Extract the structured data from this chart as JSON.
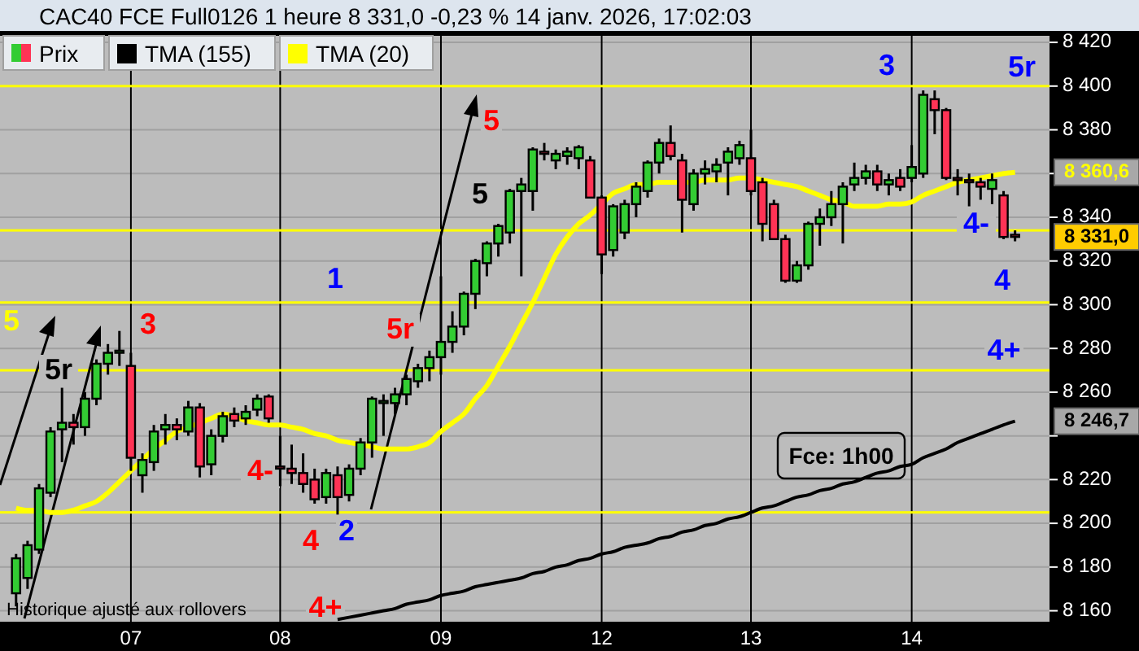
{
  "chart_data": {
    "type": "candlestick",
    "title": "CAC40 FCE Full0126 1 heure 8 331,0 -0,23 % 14 janv. 2026, 17:02:03",
    "categories": [
      null,
      null,
      null,
      null,
      null,
      null,
      null,
      null,
      null,
      null,
      "07",
      null,
      null,
      null,
      null,
      null,
      null,
      null,
      null,
      null,
      null,
      null,
      null,
      "08",
      null,
      null,
      null,
      null,
      null,
      null,
      null,
      null,
      null,
      null,
      null,
      null,
      null,
      "09",
      null,
      null,
      null,
      null,
      null,
      null,
      null,
      null,
      null,
      null,
      null,
      null,
      null,
      "12",
      null,
      null,
      null,
      null,
      null,
      null,
      null,
      null,
      null,
      null,
      null,
      null,
      "13",
      null,
      null,
      null,
      null,
      null,
      null,
      null,
      null,
      null,
      null,
      null,
      null,
      null,
      "14",
      null,
      null,
      null,
      null,
      null,
      null,
      null,
      null,
      null
    ],
    "ylim": [
      8155,
      8423
    ],
    "yticks": [
      {
        "value": 8160,
        "label": "8 160"
      },
      {
        "value": 8180,
        "label": "8 180"
      },
      {
        "value": 8200,
        "label": "8 200"
      },
      {
        "value": 8220,
        "label": "8 220"
      },
      {
        "value": 8240,
        "label": null
      },
      {
        "value": 8260,
        "label": "8 260"
      },
      {
        "value": 8280,
        "label": "8 280"
      },
      {
        "value": 8300,
        "label": "8 300"
      },
      {
        "value": 8320,
        "label": "8 320"
      },
      {
        "value": 8340,
        "label": "8 340"
      },
      {
        "value": 8360,
        "label": null
      },
      {
        "value": 8380,
        "label": "8 380"
      },
      {
        "value": 8400,
        "label": "8 400"
      },
      {
        "value": 8420,
        "label": "8 420"
      }
    ],
    "grid": true,
    "legend": "top left",
    "series": [
      {
        "name": "Prix",
        "colors": [
          "#33cc33",
          "#33cc33",
          "#33cc33",
          "#33cc33",
          "#33cc33",
          "#ff3355",
          "#33cc33",
          "#33cc33",
          "#33cc33",
          "#33cc33",
          "#ff3355",
          "#33cc33",
          "#33cc33",
          "#33cc33",
          "#ff3355",
          "#33cc33",
          "#ff3355",
          "#33cc33",
          "#33cc33",
          "#ff3355",
          "#33cc33",
          "#33cc33",
          "#ff3355",
          "#ff3355",
          "#ff3355",
          "#ff3355",
          "#ff3355",
          "#33cc33",
          "#ff3355",
          "#33cc33",
          "#33cc33",
          "#33cc33",
          "#33cc33",
          "#33cc33",
          "#33cc33",
          "#33cc33",
          "#33cc33",
          "#33cc33",
          "#33cc33",
          "#33cc33",
          "#33cc33",
          "#33cc33",
          "#33cc33",
          "#33cc33",
          "#33cc33",
          "#33cc33",
          "#ff3355",
          "#33cc33",
          "#33cc33",
          "#33cc33",
          "#ff3355",
          "#ff3355",
          "#33cc33",
          "#33cc33",
          "#33cc33",
          "#33cc33",
          "#33cc33",
          "#ff3355",
          "#ff3355",
          "#33cc33",
          "#33cc33",
          "#33cc33",
          "#33cc33",
          "#33cc33",
          "#ff3355",
          "#ff3355",
          "#ff3355",
          "#ff3355",
          "#33cc33",
          "#33cc33",
          "#33cc33",
          "#33cc33",
          "#33cc33",
          "#33cc33",
          "#33cc33",
          "#ff3355",
          "#33cc33",
          "#ff3355",
          "#33cc33",
          "#33cc33",
          "#ff3355",
          "#ff3355",
          "#ff3355",
          "#ff3355",
          "#ff3355",
          "#33cc33",
          "#ff3355",
          "#ff3355"
        ],
        "ohlc": [
          [
            8168,
            8186,
            8162,
            8184
          ],
          [
            8175,
            8192,
            8170,
            8190
          ],
          [
            8188,
            8218,
            8186,
            8216
          ],
          [
            8214,
            8244,
            8212,
            8242
          ],
          [
            8243,
            8262,
            8228,
            8246
          ],
          [
            8246,
            8250,
            8236,
            8244
          ],
          [
            8244,
            8260,
            8240,
            8257
          ],
          [
            8257,
            8275,
            8254,
            8273
          ],
          [
            8273,
            8282,
            8268,
            8278
          ],
          [
            8278,
            8288,
            8272,
            8279
          ],
          [
            8272,
            8278,
            8224,
            8230
          ],
          [
            8222,
            8232,
            8214,
            8229
          ],
          [
            8228,
            8245,
            8224,
            8242
          ],
          [
            8243,
            8250,
            8236,
            8245
          ],
          [
            8245,
            8248,
            8238,
            8243
          ],
          [
            8242,
            8256,
            8240,
            8253
          ],
          [
            8253,
            8255,
            8221,
            8226
          ],
          [
            8227,
            8243,
            8222,
            8240
          ],
          [
            8240,
            8251,
            8237,
            8249
          ],
          [
            8250,
            8253,
            8244,
            8247
          ],
          [
            8248,
            8254,
            8245,
            8251
          ],
          [
            8252,
            8259,
            8249,
            8257
          ],
          [
            8258,
            8259,
            8246,
            8248
          ],
          [
            8226,
            8240,
            8217,
            8225
          ],
          [
            8225,
            8236,
            8218,
            8223
          ],
          [
            8223,
            8232,
            8214,
            8218
          ],
          [
            8220,
            8225,
            8209,
            8211
          ],
          [
            8212,
            8225,
            8209,
            8223
          ],
          [
            8222,
            8226,
            8204,
            8212
          ],
          [
            8213,
            8227,
            8210,
            8225
          ],
          [
            8225,
            8239,
            8222,
            8237
          ],
          [
            8237,
            8258,
            8230,
            8257
          ],
          [
            8255,
            8259,
            8240,
            8256
          ],
          [
            8255,
            8262,
            8250,
            8259
          ],
          [
            8259,
            8268,
            8254,
            8266
          ],
          [
            8265,
            8273,
            8262,
            8271
          ],
          [
            8271,
            8279,
            8265,
            8276
          ],
          [
            8276,
            8313,
            8268,
            8283
          ],
          [
            8283,
            8297,
            8278,
            8290
          ],
          [
            8290,
            8306,
            8286,
            8305
          ],
          [
            8305,
            8321,
            8298,
            8320
          ],
          [
            8319,
            8329,
            8313,
            8328
          ],
          [
            8328,
            8337,
            8322,
            8336
          ],
          [
            8333,
            8353,
            8328,
            8352
          ],
          [
            8352,
            8358,
            8313,
            8355
          ],
          [
            8352,
            8372,
            8343,
            8371
          ],
          [
            8370,
            8374,
            8366,
            8369
          ],
          [
            8366,
            8371,
            8362,
            8369
          ],
          [
            8368,
            8372,
            8364,
            8370
          ],
          [
            8367,
            8373,
            8362,
            8372
          ],
          [
            8366,
            8368,
            8349,
            8349
          ],
          [
            8349,
            8350,
            8314,
            8323
          ],
          [
            8325,
            8346,
            8322,
            8345
          ],
          [
            8333,
            8348,
            8330,
            8346
          ],
          [
            8346,
            8356,
            8340,
            8354
          ],
          [
            8352,
            8366,
            8349,
            8365
          ],
          [
            8365,
            8376,
            8360,
            8374
          ],
          [
            8374,
            8382,
            8366,
            8368
          ],
          [
            8366,
            8369,
            8333,
            8348
          ],
          [
            8346,
            8362,
            8343,
            8360
          ],
          [
            8360,
            8366,
            8355,
            8362
          ],
          [
            8361,
            8367,
            8356,
            8364
          ],
          [
            8365,
            8372,
            8350,
            8370
          ],
          [
            8367,
            8375,
            8364,
            8373
          ],
          [
            8367,
            8380,
            8350,
            8352
          ],
          [
            8356,
            8358,
            8329,
            8337
          ],
          [
            8346,
            8348,
            8330,
            8330
          ],
          [
            8330,
            8332,
            8310,
            8311
          ],
          [
            8311,
            8320,
            8310,
            8318
          ],
          [
            8318,
            8338,
            8316,
            8337
          ],
          [
            8337,
            8344,
            8327,
            8340
          ],
          [
            8340,
            8352,
            8336,
            8346
          ],
          [
            8346,
            8356,
            8328,
            8354
          ],
          [
            8355,
            8365,
            8352,
            8358
          ],
          [
            8358,
            8364,
            8355,
            8361
          ],
          [
            8361,
            8364,
            8352,
            8355
          ],
          [
            8355,
            8360,
            8350,
            8357
          ],
          [
            8358,
            8362,
            8352,
            8354
          ],
          [
            8358,
            8373,
            8356,
            8363
          ],
          [
            8360,
            8398,
            8358,
            8396
          ],
          [
            8394,
            8398,
            8378,
            8389
          ],
          [
            8389,
            8390,
            8357,
            8358
          ],
          [
            8358,
            8362,
            8350,
            8357
          ],
          [
            8357,
            8360,
            8345,
            8356
          ],
          [
            8356,
            8358,
            8348,
            8354
          ],
          [
            8353,
            8360,
            8346,
            8357
          ],
          [
            8350,
            8352,
            8330,
            8331
          ],
          [
            8332,
            8334,
            8329,
            8331
          ]
        ]
      },
      {
        "name": "TMA (155)",
        "type": "line",
        "color": "#000000",
        "values": [
          null,
          null,
          null,
          null,
          null,
          null,
          null,
          null,
          null,
          null,
          null,
          null,
          null,
          null,
          null,
          null,
          null,
          null,
          null,
          null,
          null,
          null,
          null,
          null,
          null,
          null,
          null,
          null,
          8156,
          8157,
          8158,
          8159,
          8160,
          8161,
          8163,
          8164,
          8165,
          8167,
          8168,
          8169,
          8171,
          8172,
          8173,
          8174,
          8175,
          8177,
          8178,
          8180,
          8181,
          8183,
          8184,
          8186,
          8187,
          8189,
          8190,
          8191,
          8193,
          8194,
          8196,
          8197,
          8199,
          8200,
          8202,
          8203,
          8205,
          8207,
          8208,
          8210,
          8212,
          8213,
          8215,
          8216,
          8218,
          8219,
          8221,
          8223,
          8224,
          8226,
          8227,
          8230,
          8232,
          8234,
          8237,
          8239,
          8241,
          8243,
          8245,
          8246.7
        ]
      },
      {
        "name": "TMA (20)",
        "type": "line",
        "color": "#ffff00",
        "values": [
          8207,
          8206,
          8206,
          8205,
          8205,
          8206,
          8208,
          8210,
          8214,
          8219,
          8224,
          8229,
          8234,
          8238,
          8242,
          8244,
          8246,
          8248,
          8250,
          8249,
          8247,
          8246,
          8245,
          8245,
          8244,
          8243,
          8241,
          8240,
          8238,
          8237,
          8236,
          8235,
          8234,
          8234,
          8234,
          8235,
          8237,
          8242,
          8246,
          8250,
          8257,
          8263,
          8272,
          8281,
          8291,
          8301,
          8312,
          8323,
          8331,
          8337,
          8341,
          8346,
          8351,
          8353,
          8355,
          8355,
          8356,
          8356,
          8356,
          8356,
          8357,
          8357,
          8357,
          8358,
          8358,
          8357,
          8356,
          8355,
          8354,
          8352,
          8350,
          8348,
          8347,
          8345,
          8345,
          8345,
          8346,
          8346,
          8347,
          8350,
          8352,
          8354,
          8356,
          8357,
          8358,
          8359,
          8360,
          8360.6
        ]
      }
    ],
    "ref_lines": [
      {
        "axis": "y",
        "value": 8400,
        "color": "#ffff00"
      },
      {
        "axis": "y",
        "value": 8334,
        "color": "#ffff00"
      },
      {
        "axis": "y",
        "value": 8301,
        "color": "#ffff00"
      },
      {
        "axis": "y",
        "value": 8270,
        "color": "#ffff00"
      },
      {
        "axis": "y",
        "value": 8205,
        "color": "#ffff00"
      }
    ],
    "annotations": [
      "Historique ajusté aux rollovers",
      "Fce: 1h00",
      "5",
      "5r",
      "3",
      "1",
      "4-",
      "4",
      "2",
      "4+",
      "5r",
      "5",
      "5",
      "3",
      "5r",
      "4-",
      "4",
      "4+",
      "8 360,6",
      "8 331,0",
      "8 246,7"
    ]
  }
}
